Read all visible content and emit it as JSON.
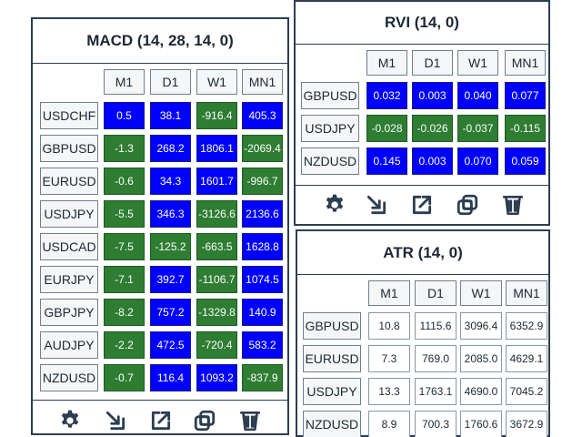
{
  "panels": [
    {
      "id": "macd",
      "title": "MACD (14, 28, 14, 0)",
      "timeframes": [
        "M1",
        "D1",
        "W1",
        "MN1"
      ],
      "rows": [
        {
          "symbol": "USDCHF",
          "values": [
            "0.5",
            "38.1",
            "-916.4",
            "405.3"
          ],
          "colors": [
            "pos",
            "pos",
            "neg",
            "pos"
          ]
        },
        {
          "symbol": "GBPUSD",
          "values": [
            "-1.3",
            "268.2",
            "1806.1",
            "-2069.4"
          ],
          "colors": [
            "neg",
            "pos",
            "pos",
            "neg"
          ]
        },
        {
          "symbol": "EURUSD",
          "values": [
            "-0.6",
            "34.3",
            "1601.7",
            "-996.7"
          ],
          "colors": [
            "neg",
            "pos",
            "pos",
            "neg"
          ]
        },
        {
          "symbol": "USDJPY",
          "values": [
            "-5.5",
            "346.3",
            "-3126.6",
            "2136.6"
          ],
          "colors": [
            "neg",
            "pos",
            "neg",
            "pos"
          ]
        },
        {
          "symbol": "USDCAD",
          "values": [
            "-7.5",
            "-125.2",
            "-663.5",
            "1628.8"
          ],
          "colors": [
            "neg",
            "neg",
            "neg",
            "pos"
          ]
        },
        {
          "symbol": "EURJPY",
          "values": [
            "-7.1",
            "392.7",
            "-1106.7",
            "1074.5"
          ],
          "colors": [
            "neg",
            "pos",
            "neg",
            "pos"
          ]
        },
        {
          "symbol": "GBPJPY",
          "values": [
            "-8.2",
            "757.2",
            "-1329.8",
            "140.9"
          ],
          "colors": [
            "neg",
            "pos",
            "neg",
            "pos"
          ]
        },
        {
          "symbol": "AUDJPY",
          "values": [
            "-2.2",
            "472.5",
            "-720.4",
            "583.2"
          ],
          "colors": [
            "neg",
            "pos",
            "neg",
            "pos"
          ]
        },
        {
          "symbol": "NZDUSD",
          "values": [
            "-0.7",
            "116.4",
            "1093.2",
            "-837.9"
          ],
          "colors": [
            "neg",
            "pos",
            "pos",
            "neg"
          ]
        }
      ],
      "toolbar": [
        "gear-icon",
        "minimize-icon",
        "export-icon",
        "duplicate-icon",
        "trash-icon"
      ]
    },
    {
      "id": "rvi",
      "title": "RVI (14, 0)",
      "timeframes": [
        "M1",
        "D1",
        "W1",
        "MN1"
      ],
      "rows": [
        {
          "symbol": "GBPUSD",
          "values": [
            "0.032",
            "0.003",
            "0.040",
            "0.077"
          ],
          "colors": [
            "pos",
            "pos",
            "pos",
            "pos"
          ]
        },
        {
          "symbol": "USDJPY",
          "values": [
            "-0.028",
            "-0.026",
            "-0.037",
            "-0.115"
          ],
          "colors": [
            "neg",
            "neg",
            "neg",
            "neg"
          ]
        },
        {
          "symbol": "NZDUSD",
          "values": [
            "0.145",
            "0.003",
            "0.070",
            "0.059"
          ],
          "colors": [
            "pos",
            "pos",
            "pos",
            "pos"
          ]
        }
      ],
      "toolbar": [
        "gear-icon",
        "minimize-icon",
        "export-icon",
        "duplicate-icon",
        "trash-icon"
      ]
    },
    {
      "id": "atr",
      "title": "ATR (14, 0)",
      "timeframes": [
        "M1",
        "D1",
        "W1",
        "MN1"
      ],
      "rows": [
        {
          "symbol": "GBPUSD",
          "values": [
            "10.8",
            "1115.6",
            "3096.4",
            "6352.9"
          ],
          "colors": [
            "plain",
            "plain",
            "plain",
            "plain"
          ]
        },
        {
          "symbol": "EURUSD",
          "values": [
            "7.3",
            "769.0",
            "2085.0",
            "4629.1"
          ],
          "colors": [
            "plain",
            "plain",
            "plain",
            "plain"
          ]
        },
        {
          "symbol": "USDJPY",
          "values": [
            "13.3",
            "1763.1",
            "4690.0",
            "7045.2"
          ],
          "colors": [
            "plain",
            "plain",
            "plain",
            "plain"
          ]
        },
        {
          "symbol": "NZDUSD",
          "values": [
            "8.9",
            "700.3",
            "1760.6",
            "3672.9"
          ],
          "colors": [
            "plain",
            "plain",
            "plain",
            "plain"
          ]
        }
      ],
      "toolbar": []
    }
  ],
  "colors": {
    "positive": "#0000ff",
    "negative": "#2e7d32",
    "border": "#2c3e50"
  }
}
